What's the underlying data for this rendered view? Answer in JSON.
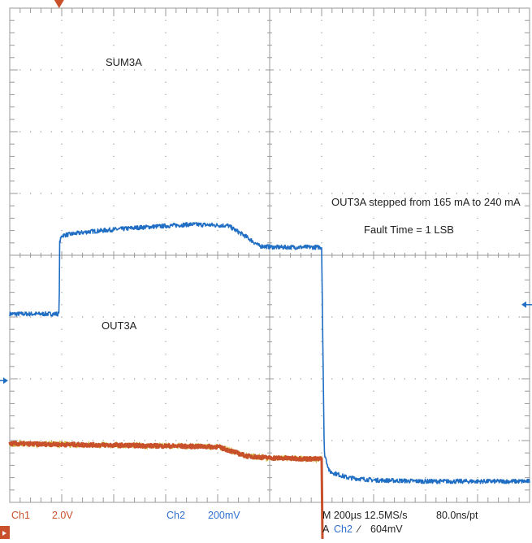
{
  "colors": {
    "grid": "#9a9a9a",
    "ch1": "#c8502a",
    "ch1_noise": "#c9b42a",
    "ch2": "#1f6ec4",
    "text": "#222222"
  },
  "annotations": {
    "sum_label": "SUM3A",
    "out_label": "OUT3A",
    "step_note": "OUT3A stepped from 165 mA to 240 mA",
    "fault_note": "Fault Time = 1 LSB"
  },
  "status": {
    "ch1_name": "Ch1",
    "ch1_scale": "2.0V",
    "ch2_name": "Ch2",
    "ch2_scale": "200mV",
    "timebase": "M 200µs 12.5MS/s",
    "resolution": "80.0ns/pt",
    "trigger_prefix": "A",
    "trigger_channel": "Ch2",
    "trigger_slope_icon": "rising-edge-icon",
    "trigger_slope_glyph": "∕",
    "trigger_level": "604mV"
  },
  "chart_data": {
    "type": "line",
    "grid": true,
    "x_divisions": 10,
    "y_divisions": 8,
    "series": [
      {
        "name": "SUM3A",
        "channel": "Ch2",
        "color": "#1f6ec4",
        "noise": 0.035,
        "unit": "div",
        "points": [
          [
            0,
            -0.95
          ],
          [
            0.95,
            -0.95
          ],
          [
            0.96,
            0.2
          ],
          [
            1.0,
            0.32
          ],
          [
            1.5,
            0.38
          ],
          [
            2.5,
            0.45
          ],
          [
            3.5,
            0.5
          ],
          [
            4.2,
            0.48
          ],
          [
            4.55,
            0.3
          ],
          [
            4.8,
            0.15
          ],
          [
            5.1,
            0.13
          ],
          [
            6.0,
            0.13
          ],
          [
            6.05,
            -3.2
          ],
          [
            6.15,
            -3.5
          ],
          [
            6.5,
            -3.6
          ],
          [
            7.0,
            -3.64
          ],
          [
            8.0,
            -3.66
          ],
          [
            10.0,
            -3.66
          ]
        ]
      },
      {
        "name": "OUT3A",
        "channel": "Ch1",
        "color": "#c8502a",
        "noise": 0.03,
        "unit": "div",
        "points": [
          [
            0,
            -3.05
          ],
          [
            4.0,
            -3.1
          ],
          [
            4.3,
            -3.18
          ],
          [
            4.55,
            -3.25
          ],
          [
            5.0,
            -3.28
          ],
          [
            6.0,
            -3.3
          ],
          [
            6.02,
            -4.9
          ],
          [
            10.0,
            -4.95
          ]
        ]
      }
    ],
    "markers": {
      "trigger_position_div": 0.95,
      "trigger_level_div": -0.8,
      "ch2_ground_div": -2.03,
      "ch1_ground_div": -4.5
    }
  }
}
